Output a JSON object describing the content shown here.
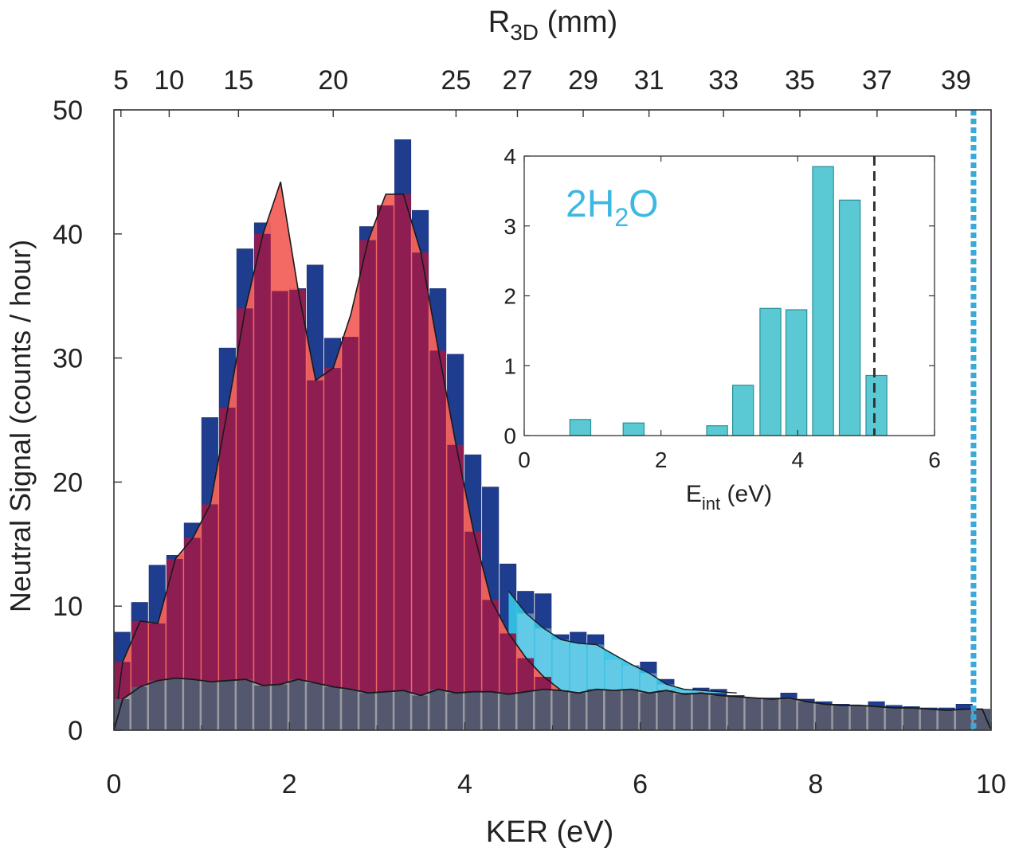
{
  "colors": {
    "main_bar": "#1f3d8f",
    "peak_fill": "#f2625c",
    "overlap_bar": "#8e1d52",
    "excess_fill": "#33c3e6",
    "bg_fill": "#9a9aa0",
    "bg_bar": "#54586f",
    "inset_bar": "#5bc9d3",
    "marker_dotted": "#3aa9d8",
    "inset_label": "#3cb8e2"
  },
  "chart_data": [
    {
      "type": "bar",
      "xlabel": "KER (eV)",
      "ylabel": "Neutral Signal (counts / hour)",
      "top_axis_label": {
        "main": "R",
        "sub": "3D",
        "tail": " (mm)"
      },
      "xlim": [
        0,
        10
      ],
      "ylim": [
        0,
        50
      ],
      "x_ticks": [
        {
          "value": 0,
          "label": "0"
        },
        {
          "value": 2,
          "label": "2"
        },
        {
          "value": 4,
          "label": "4"
        },
        {
          "value": 6,
          "label": "6"
        },
        {
          "value": 8,
          "label": "8"
        },
        {
          "value": 10,
          "label": "10"
        }
      ],
      "y_ticks": [
        {
          "value": 0,
          "label": "0"
        },
        {
          "value": 10,
          "label": "10"
        },
        {
          "value": 20,
          "label": "20"
        },
        {
          "value": 30,
          "label": "30"
        },
        {
          "value": 40,
          "label": "40"
        },
        {
          "value": 50,
          "label": "50"
        }
      ],
      "top_ticks": [
        {
          "ker": 0.08,
          "label": "5"
        },
        {
          "ker": 0.63,
          "label": "10"
        },
        {
          "ker": 1.42,
          "label": "15"
        },
        {
          "ker": 2.5,
          "label": "20"
        },
        {
          "ker": 3.9,
          "label": "25"
        },
        {
          "ker": 4.6,
          "label": "27"
        },
        {
          "ker": 5.35,
          "label": "29"
        },
        {
          "ker": 6.1,
          "label": "31"
        },
        {
          "ker": 6.95,
          "label": "33"
        },
        {
          "ker": 7.82,
          "label": "35"
        },
        {
          "ker": 8.7,
          "label": "37"
        },
        {
          "ker": 9.6,
          "label": "39"
        }
      ],
      "bin_width": 0.2,
      "series": [
        {
          "kind": "histogram",
          "x": [
            0.1,
            0.3,
            0.5,
            0.7,
            0.9,
            1.1,
            1.3,
            1.5,
            1.7,
            1.9,
            2.1,
            2.3,
            2.5,
            2.7,
            2.9,
            3.1,
            3.3,
            3.5,
            3.7,
            3.9,
            4.1,
            4.3,
            4.5,
            4.7,
            4.9,
            5.1,
            5.3,
            5.5,
            5.7,
            5.9,
            6.1,
            6.3,
            6.5,
            6.7,
            6.9,
            7.1,
            7.3,
            7.5,
            7.7,
            7.9,
            8.1,
            8.3,
            8.5,
            8.7,
            8.9,
            9.1,
            9.3,
            9.5,
            9.7,
            9.9
          ],
          "values": [
            7.9,
            10.3,
            13.3,
            14.1,
            16.7,
            25.2,
            30.8,
            38.8,
            40.9,
            35.4,
            35.6,
            37.5,
            31.6,
            31.7,
            40.6,
            42.3,
            47.6,
            41.9,
            35.6,
            30.3,
            22.2,
            19.6,
            13.4,
            11.2,
            11.0,
            7.7,
            7.9,
            7.7,
            5.7,
            5.2,
            5.5,
            4.1,
            3.2,
            3.4,
            3.3,
            2.8,
            2.6,
            2.6,
            3.0,
            2.5,
            2.3,
            2.1,
            2.0,
            2.3,
            2.0,
            1.9,
            1.8,
            1.8,
            2.1,
            1.7
          ]
        },
        {
          "kind": "filled-curve",
          "x": [
            0,
            0.1,
            0.3,
            0.5,
            0.7,
            0.9,
            1.1,
            1.3,
            1.5,
            1.7,
            1.9,
            2.1,
            2.3,
            2.5,
            2.7,
            2.9,
            3.1,
            3.3,
            3.5,
            3.7,
            3.9,
            4.1,
            4.3,
            4.5,
            4.7,
            4.9,
            5.1,
            5.3,
            5.5,
            5.7,
            5.9,
            6.0
          ],
          "values": [
            0,
            5.5,
            8.8,
            8.6,
            13.8,
            15.5,
            18.2,
            26.0,
            34.0,
            40.0,
            44.2,
            35.5,
            28.2,
            29.2,
            33.5,
            39.5,
            43.2,
            43.2,
            38.5,
            30.6,
            23.0,
            16.0,
            10.5,
            7.8,
            5.8,
            4.3,
            3.2,
            2.7,
            2.5,
            2.8,
            3.0,
            3.0
          ]
        },
        {
          "kind": "filled-curve",
          "x": [
            4.5,
            4.7,
            4.9,
            5.1,
            5.3,
            5.5,
            5.7,
            5.9,
            6.1,
            6.3,
            6.5,
            6.7,
            6.9,
            7.1
          ],
          "values": [
            11.2,
            9.4,
            8.2,
            7.3,
            7.0,
            6.9,
            6.1,
            5.3,
            4.6,
            3.7,
            3.3,
            3.2,
            3.1,
            3.0
          ]
        },
        {
          "kind": "filled-curve",
          "x": [
            0,
            0.1,
            0.3,
            0.5,
            0.7,
            0.9,
            1.1,
            1.3,
            1.5,
            1.7,
            1.9,
            2.1,
            2.3,
            2.5,
            2.7,
            2.9,
            3.1,
            3.3,
            3.5,
            3.7,
            3.9,
            4.1,
            4.3,
            4.5,
            4.7,
            4.9,
            5.1,
            5.3,
            5.5,
            5.7,
            5.9,
            6.1,
            6.3,
            6.5,
            6.7,
            6.9,
            7.1,
            7.3,
            7.5,
            7.7,
            7.9,
            8.1,
            8.3,
            8.5,
            8.7,
            8.9,
            9.1,
            9.3,
            9.5,
            9.7,
            9.9,
            10.0
          ],
          "values": [
            0,
            2.5,
            3.5,
            4.0,
            4.2,
            4.1,
            3.9,
            4.0,
            4.1,
            3.6,
            3.7,
            4.1,
            3.8,
            3.5,
            3.3,
            3.0,
            3.1,
            3.2,
            2.8,
            3.3,
            3.0,
            3.1,
            3.1,
            2.9,
            3.1,
            3.3,
            3.2,
            3.0,
            3.3,
            3.2,
            3.3,
            3.0,
            3.2,
            2.9,
            3.0,
            2.8,
            2.7,
            2.6,
            2.5,
            2.6,
            2.3,
            2.1,
            2.0,
            2.0,
            1.9,
            1.8,
            1.8,
            1.7,
            1.6,
            1.7,
            1.7,
            0
          ]
        },
        {
          "kind": "vertical-marker",
          "x": 9.8,
          "style": "dotted"
        }
      ]
    },
    {
      "type": "bar",
      "inset": true,
      "annotation": {
        "a": "2H",
        "sub": "2",
        "b": "O"
      },
      "xlabel": {
        "main": "E",
        "sub": "int",
        "tail": " (eV)"
      },
      "xlim": [
        0,
        6
      ],
      "ylim": [
        0,
        4
      ],
      "x_ticks": [
        {
          "value": 0,
          "label": "0"
        },
        {
          "value": 2,
          "label": "2"
        },
        {
          "value": 4,
          "label": "4"
        },
        {
          "value": 6,
          "label": "6"
        }
      ],
      "y_ticks": [
        {
          "value": 0,
          "label": "0"
        },
        {
          "value": 1,
          "label": "1"
        },
        {
          "value": 2,
          "label": "2"
        },
        {
          "value": 3,
          "label": "3"
        },
        {
          "value": 4,
          "label": "4"
        }
      ],
      "bin_width": 0.34,
      "x": [
        0.82,
        1.6,
        2.82,
        3.2,
        3.6,
        3.98,
        4.37,
        4.76,
        5.15
      ],
      "values": [
        0.23,
        0.18,
        0.14,
        0.72,
        1.82,
        1.8,
        3.85,
        3.37,
        0.86
      ],
      "dashed_marker": 5.12
    }
  ]
}
